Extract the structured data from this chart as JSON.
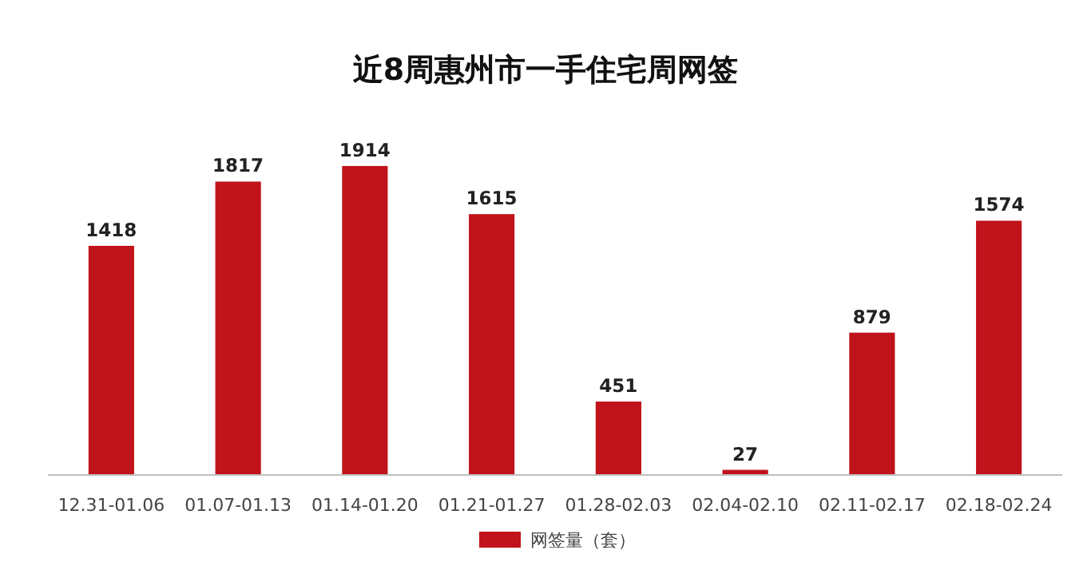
{
  "chart_data": {
    "type": "bar",
    "title": "近8周惠州市一手住宅周网签",
    "categories": [
      "12.31-01.06",
      "01.07-01.13",
      "01.14-01.20",
      "01.21-01.27",
      "01.28-02.03",
      "02.04-02.10",
      "02.11-02.17",
      "02.18-02.24"
    ],
    "series": [
      {
        "name": "网签量（套）",
        "color": "#c0131b",
        "values": [
          1418,
          1817,
          1914,
          1615,
          451,
          27,
          879,
          1574
        ]
      }
    ],
    "data_labels": true,
    "legend": "bottom"
  }
}
